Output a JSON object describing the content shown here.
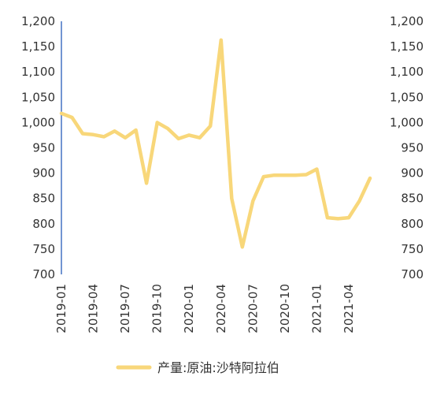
{
  "chart_data": {
    "type": "line",
    "x": [
      "2019-01",
      "2019-02",
      "2019-03",
      "2019-04",
      "2019-05",
      "2019-06",
      "2019-07",
      "2019-08",
      "2019-09",
      "2019-10",
      "2019-11",
      "2019-12",
      "2020-01",
      "2020-02",
      "2020-03",
      "2020-04",
      "2020-05",
      "2020-06",
      "2020-07",
      "2020-08",
      "2020-09",
      "2020-10",
      "2020-11",
      "2020-12",
      "2021-01",
      "2021-02",
      "2021-03",
      "2021-04",
      "2021-05",
      "2021-06"
    ],
    "x_tick_labels": [
      "2019-01",
      "2019-04",
      "2019-07",
      "2019-10",
      "2020-01",
      "2020-04",
      "2020-07",
      "2020-10",
      "2021-01",
      "2021-04"
    ],
    "x_tick_indices": [
      0,
      3,
      6,
      9,
      12,
      15,
      18,
      21,
      24,
      27
    ],
    "series": [
      {
        "name": "产量:原油:沙特阿拉伯",
        "color": "#F8D77A",
        "values": [
          1018,
          1010,
          978,
          976,
          972,
          983,
          970,
          985,
          880,
          1000,
          988,
          968,
          975,
          970,
          993,
          1163,
          850,
          754,
          845,
          893,
          896,
          896,
          896,
          897,
          908,
          812,
          810,
          812,
          845,
          890
        ]
      }
    ],
    "y_ticks": [
      "1,200",
      "1,150",
      "1,100",
      "1,050",
      "1,000",
      "950",
      "900",
      "850",
      "800",
      "750",
      "700"
    ],
    "ylim": [
      700,
      1200
    ],
    "legend_position": "bottom"
  }
}
